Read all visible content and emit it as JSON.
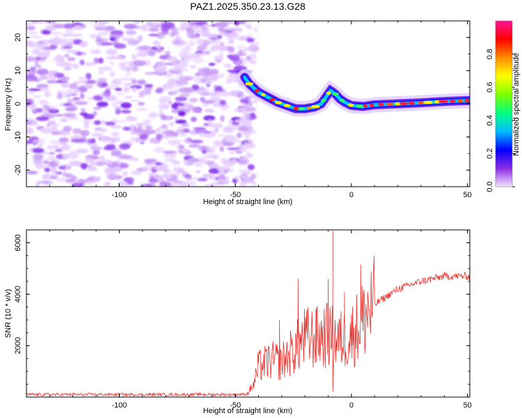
{
  "title": "PAZ1.2025.350.23.13.G28",
  "chart_data": [
    {
      "id": "spectrogram",
      "type": "heatmap",
      "xlabel": "Height of straight line (km)",
      "ylabel": "Frequency (Hz)",
      "xlim": [
        -140,
        51
      ],
      "ylim": [
        -25,
        25
      ],
      "xticks": [
        -100,
        -50,
        0,
        50
      ],
      "yticks": [
        -20,
        -10,
        0,
        10,
        20
      ],
      "noise_region_x": [
        -140,
        -45
      ],
      "signal_track": {
        "x": [
          -46,
          -44,
          -40,
          -36,
          -32,
          -28,
          -24,
          -20,
          -16,
          -13,
          -11,
          -9,
          -7,
          -5,
          -3,
          0,
          5,
          10,
          20,
          30,
          40,
          51
        ],
        "freq": [
          8,
          6,
          3.5,
          2,
          0.5,
          -0.5,
          -1.5,
          -1.5,
          -1,
          0,
          2,
          4,
          3,
          1.5,
          0.5,
          -0.5,
          -0.8,
          -0.3,
          0,
          0.3,
          0.7,
          1
        ]
      },
      "colorbar": {
        "label": "Normalized spectral amplitude",
        "range": [
          0,
          1
        ],
        "ticks": [
          0.0,
          0.2,
          0.4,
          0.6,
          0.8
        ],
        "stops": [
          "#f3e3ff",
          "#8a2be2",
          "#0000ff",
          "#00bfff",
          "#00ff80",
          "#7fff00",
          "#ffff00",
          "#ff8c00",
          "#ff0000",
          "#ff1493"
        ]
      }
    },
    {
      "id": "snr",
      "type": "line",
      "xlabel": "Height of straight line (km)",
      "ylabel": "SNR (10 * v/v)",
      "xlim": [
        -140,
        51
      ],
      "ylim": [
        0,
        6500
      ],
      "xticks": [
        -100,
        -50,
        0,
        50
      ],
      "yticks": [
        2000,
        4000,
        6000
      ],
      "color": "#e8302c",
      "series_envelope": {
        "x": [
          -140,
          -50,
          -45,
          -42,
          -40,
          -35,
          -30,
          -25,
          -20,
          -15,
          -10,
          -5,
          0,
          5,
          10,
          15,
          20,
          30,
          40,
          51
        ],
        "values": [
          100,
          100,
          120,
          500,
          1200,
          1400,
          1400,
          1800,
          2300,
          2300,
          2400,
          2200,
          2400,
          3000,
          3600,
          3900,
          4200,
          4500,
          4700,
          4700
        ]
      },
      "spikes": [
        {
          "x": -40,
          "value": 1550
        },
        {
          "x": -31,
          "value": 3000
        },
        {
          "x": -23,
          "value": 4600
        },
        {
          "x": -15,
          "value": 3300
        },
        {
          "x": -10,
          "value": 4600
        },
        {
          "x": -8,
          "value": 6450
        },
        {
          "x": -8,
          "value": 200
        },
        {
          "x": -3,
          "value": 4100
        },
        {
          "x": 4,
          "value": 5150
        },
        {
          "x": 7,
          "value": 4100
        }
      ]
    }
  ]
}
